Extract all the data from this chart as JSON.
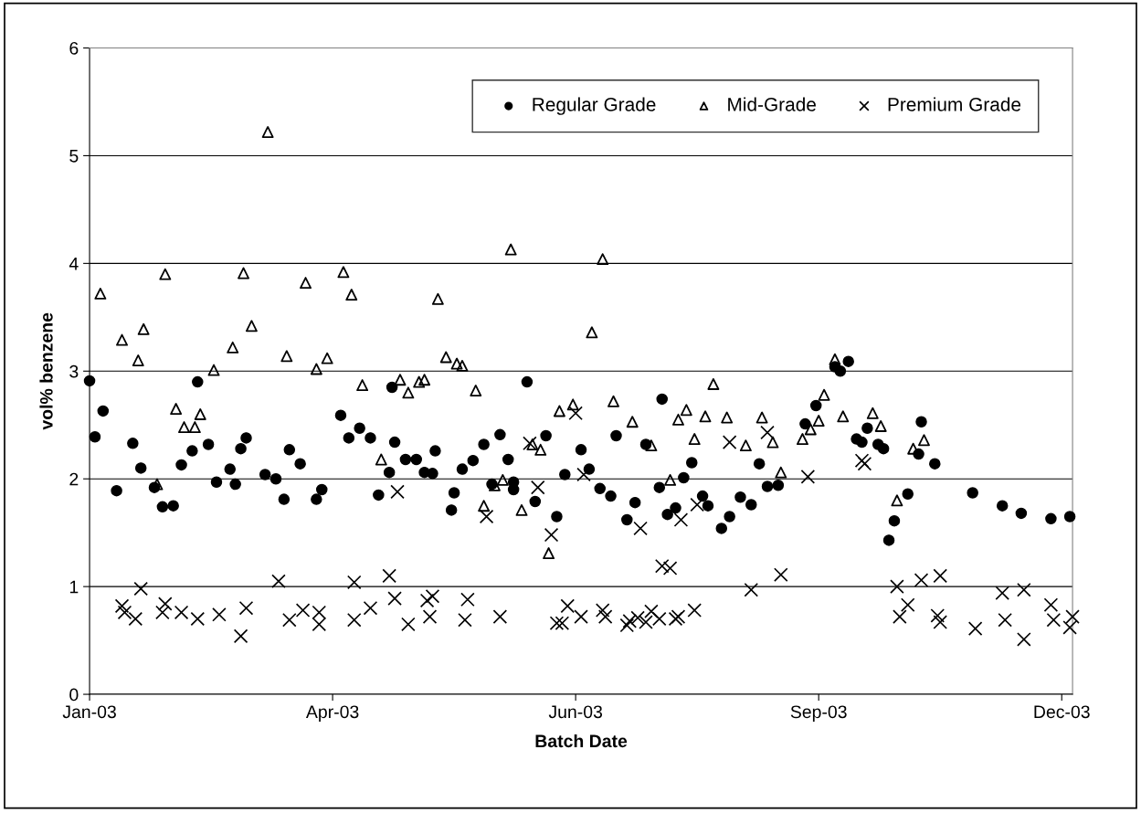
{
  "chart_data": {
    "type": "scatter",
    "xlabel": "Batch Date",
    "ylabel": "vol% benzene",
    "xlim": [
      "2003-01-01",
      "2003-12-31"
    ],
    "xticks": [
      {
        "value": "2003-01-01",
        "label": "Jan-03"
      },
      {
        "value": "2003-04-01",
        "label": "Apr-03"
      },
      {
        "value": "2003-06-30",
        "label": "Jun-03"
      },
      {
        "value": "2003-09-28",
        "label": "Sep-03"
      },
      {
        "value": "2003-12-27",
        "label": "Dec-03"
      }
    ],
    "ylim": [
      0,
      6
    ],
    "yticks": [
      0,
      1,
      2,
      3,
      4,
      5,
      6
    ],
    "grid": "y",
    "legend": "top right",
    "series": [
      {
        "name": "Regular Grade",
        "color": "#000000",
        "marker": "circle",
        "x": [
          "2003-01-01",
          "2003-01-03",
          "2003-01-06",
          "2003-01-11",
          "2003-01-17",
          "2003-01-20",
          "2003-01-25",
          "2003-01-28",
          "2003-02-01",
          "2003-02-04",
          "2003-02-08",
          "2003-02-10",
          "2003-02-14",
          "2003-02-17",
          "2003-02-22",
          "2003-02-24",
          "2003-02-26",
          "2003-02-28",
          "2003-03-07",
          "2003-03-11",
          "2003-03-14",
          "2003-03-16",
          "2003-03-20",
          "2003-03-26",
          "2003-03-28",
          "2003-04-04",
          "2003-04-07",
          "2003-04-11",
          "2003-04-15",
          "2003-04-18",
          "2003-04-22",
          "2003-04-23",
          "2003-04-24",
          "2003-04-28",
          "2003-05-02",
          "2003-05-05",
          "2003-05-08",
          "2003-05-09",
          "2003-05-15",
          "2003-05-16",
          "2003-05-19",
          "2003-05-23",
          "2003-05-27",
          "2003-05-30",
          "2003-06-02",
          "2003-06-05",
          "2003-06-07",
          "2003-06-07",
          "2003-06-12",
          "2003-06-15",
          "2003-06-19",
          "2003-06-23",
          "2003-06-26",
          "2003-07-02",
          "2003-07-05",
          "2003-07-09",
          "2003-07-13",
          "2003-07-15",
          "2003-07-19",
          "2003-07-22",
          "2003-07-26",
          "2003-07-31",
          "2003-08-01",
          "2003-08-03",
          "2003-08-06",
          "2003-08-09",
          "2003-08-12",
          "2003-08-16",
          "2003-08-18",
          "2003-08-23",
          "2003-08-26",
          "2003-08-30",
          "2003-09-03",
          "2003-09-06",
          "2003-09-09",
          "2003-09-13",
          "2003-09-23",
          "2003-09-27",
          "2003-10-04",
          "2003-10-06",
          "2003-10-09",
          "2003-10-12",
          "2003-10-14",
          "2003-10-16",
          "2003-10-20",
          "2003-10-22",
          "2003-10-24",
          "2003-10-26",
          "2003-10-31",
          "2003-11-04",
          "2003-11-05",
          "2003-11-10",
          "2003-11-24",
          "2003-12-05",
          "2003-12-12",
          "2003-12-23",
          "2003-12-30"
        ],
        "values": [
          2.91,
          2.39,
          2.63,
          1.89,
          2.33,
          2.1,
          1.92,
          1.74,
          1.75,
          2.13,
          2.26,
          2.9,
          2.32,
          1.97,
          2.09,
          1.95,
          2.28,
          2.38,
          2.04,
          2.0,
          1.81,
          2.27,
          2.14,
          1.81,
          1.9,
          2.59,
          2.38,
          2.47,
          2.38,
          1.85,
          2.06,
          2.85,
          2.34,
          2.18,
          2.18,
          2.06,
          2.05,
          2.26,
          1.71,
          1.87,
          2.09,
          2.17,
          2.32,
          1.95,
          2.41,
          2.18,
          1.97,
          1.9,
          2.9,
          1.79,
          2.4,
          1.65,
          2.04,
          2.27,
          2.09,
          1.91,
          1.84,
          2.4,
          1.62,
          1.78,
          2.32,
          1.92,
          2.74,
          1.67,
          1.73,
          2.01,
          2.15,
          1.84,
          1.75,
          1.54,
          1.65,
          1.83,
          1.76,
          2.14,
          1.93,
          1.94,
          2.51,
          2.68,
          3.04,
          3.0,
          3.09,
          2.37,
          2.34,
          2.47,
          2.32,
          2.28,
          1.43,
          1.61,
          1.86,
          2.23,
          2.53,
          2.14,
          1.87,
          1.75,
          1.68,
          1.63,
          1.65
        ]
      },
      {
        "name": "Mid-Grade",
        "color": "#000000",
        "marker": "triangle",
        "x": [
          "2003-01-05",
          "2003-01-13",
          "2003-01-19",
          "2003-01-21",
          "2003-01-26",
          "2003-01-29",
          "2003-02-02",
          "2003-02-05",
          "2003-02-09",
          "2003-02-11",
          "2003-02-16",
          "2003-02-23",
          "2003-02-27",
          "2003-03-02",
          "2003-03-08",
          "2003-03-15",
          "2003-03-22",
          "2003-03-26",
          "2003-03-30",
          "2003-04-05",
          "2003-04-08",
          "2003-04-12",
          "2003-04-19",
          "2003-04-26",
          "2003-04-29",
          "2003-05-03",
          "2003-05-05",
          "2003-05-10",
          "2003-05-13",
          "2003-05-17",
          "2003-05-19",
          "2003-05-24",
          "2003-05-27",
          "2003-05-31",
          "2003-06-03",
          "2003-06-06",
          "2003-06-10",
          "2003-06-14",
          "2003-06-17",
          "2003-06-20",
          "2003-06-24",
          "2003-06-29",
          "2003-07-06",
          "2003-07-10",
          "2003-07-14",
          "2003-07-21",
          "2003-07-28",
          "2003-08-04",
          "2003-08-07",
          "2003-08-10",
          "2003-08-13",
          "2003-08-17",
          "2003-08-20",
          "2003-08-25",
          "2003-09-01",
          "2003-09-07",
          "2003-09-11",
          "2003-09-14",
          "2003-09-22",
          "2003-09-25",
          "2003-09-28",
          "2003-09-30",
          "2003-10-04",
          "2003-10-07",
          "2003-10-18",
          "2003-10-21",
          "2003-10-27",
          "2003-11-02",
          "2003-11-06"
        ],
        "values": [
          3.72,
          3.29,
          3.1,
          3.39,
          1.95,
          3.9,
          2.65,
          2.48,
          2.48,
          2.6,
          3.01,
          3.22,
          3.91,
          3.42,
          5.22,
          3.14,
          3.82,
          3.02,
          3.12,
          3.92,
          3.71,
          2.87,
          2.18,
          2.92,
          2.8,
          2.9,
          2.92,
          3.67,
          3.13,
          3.07,
          3.05,
          2.82,
          1.75,
          1.94,
          1.99,
          4.13,
          1.71,
          2.32,
          2.27,
          1.31,
          2.63,
          2.69,
          3.36,
          4.04,
          2.72,
          2.53,
          2.31,
          1.99,
          2.55,
          2.64,
          2.37,
          2.58,
          2.88,
          2.57,
          2.31,
          2.57,
          2.34,
          2.06,
          2.37,
          2.46,
          2.54,
          2.78,
          3.11,
          2.58,
          2.61,
          2.49,
          1.8,
          2.28,
          2.36
        ]
      },
      {
        "name": "Premium Grade",
        "color": "#000000",
        "marker": "cross",
        "x": [
          "2003-01-13",
          "2003-01-14",
          "2003-01-18",
          "2003-01-20",
          "2003-01-28",
          "2003-01-29",
          "2003-02-04",
          "2003-02-10",
          "2003-02-18",
          "2003-02-26",
          "2003-02-28",
          "2003-03-12",
          "2003-03-16",
          "2003-03-21",
          "2003-03-27",
          "2003-03-27",
          "2003-04-09",
          "2003-04-09",
          "2003-04-15",
          "2003-04-22",
          "2003-04-24",
          "2003-04-25",
          "2003-04-29",
          "2003-05-06",
          "2003-05-07",
          "2003-05-08",
          "2003-05-20",
          "2003-05-21",
          "2003-05-28",
          "2003-06-02",
          "2003-06-13",
          "2003-06-16",
          "2003-06-21",
          "2003-06-23",
          "2003-06-25",
          "2003-06-27",
          "2003-06-30",
          "2003-07-02",
          "2003-07-03",
          "2003-07-10",
          "2003-07-11",
          "2003-07-19",
          "2003-07-20",
          "2003-07-23",
          "2003-07-24",
          "2003-07-26",
          "2003-07-28",
          "2003-07-31",
          "2003-08-01",
          "2003-08-04",
          "2003-08-06",
          "2003-08-07",
          "2003-08-08",
          "2003-08-13",
          "2003-08-14",
          "2003-08-26",
          "2003-09-03",
          "2003-09-09",
          "2003-09-14",
          "2003-09-24",
          "2003-10-14",
          "2003-10-15",
          "2003-10-27",
          "2003-10-28",
          "2003-10-31",
          "2003-11-05",
          "2003-11-11",
          "2003-11-12",
          "2003-11-12",
          "2003-11-25",
          "2003-12-05",
          "2003-12-06",
          "2003-12-13",
          "2003-12-13",
          "2003-12-23",
          "2003-12-24",
          "2003-12-30",
          "2003-12-31"
        ],
        "values": [
          0.82,
          0.76,
          0.7,
          0.98,
          0.76,
          0.84,
          0.76,
          0.7,
          0.74,
          0.54,
          0.8,
          1.05,
          0.69,
          0.78,
          0.76,
          0.65,
          1.04,
          0.69,
          0.8,
          1.1,
          0.89,
          1.88,
          0.65,
          0.87,
          0.72,
          0.91,
          0.69,
          0.88,
          1.65,
          0.72,
          2.33,
          1.92,
          1.48,
          0.66,
          0.66,
          0.82,
          2.61,
          0.72,
          2.04,
          0.78,
          0.72,
          0.64,
          0.68,
          0.71,
          1.54,
          0.67,
          0.77,
          0.7,
          1.19,
          1.17,
          0.7,
          0.72,
          1.62,
          0.78,
          1.76,
          2.34,
          0.97,
          2.43,
          1.11,
          2.02,
          2.17,
          2.14,
          1.0,
          0.72,
          0.83,
          1.06,
          0.73,
          1.1,
          0.67,
          0.61,
          0.94,
          0.69,
          0.97,
          0.51,
          0.83,
          0.69,
          0.62,
          0.72
        ]
      }
    ]
  }
}
